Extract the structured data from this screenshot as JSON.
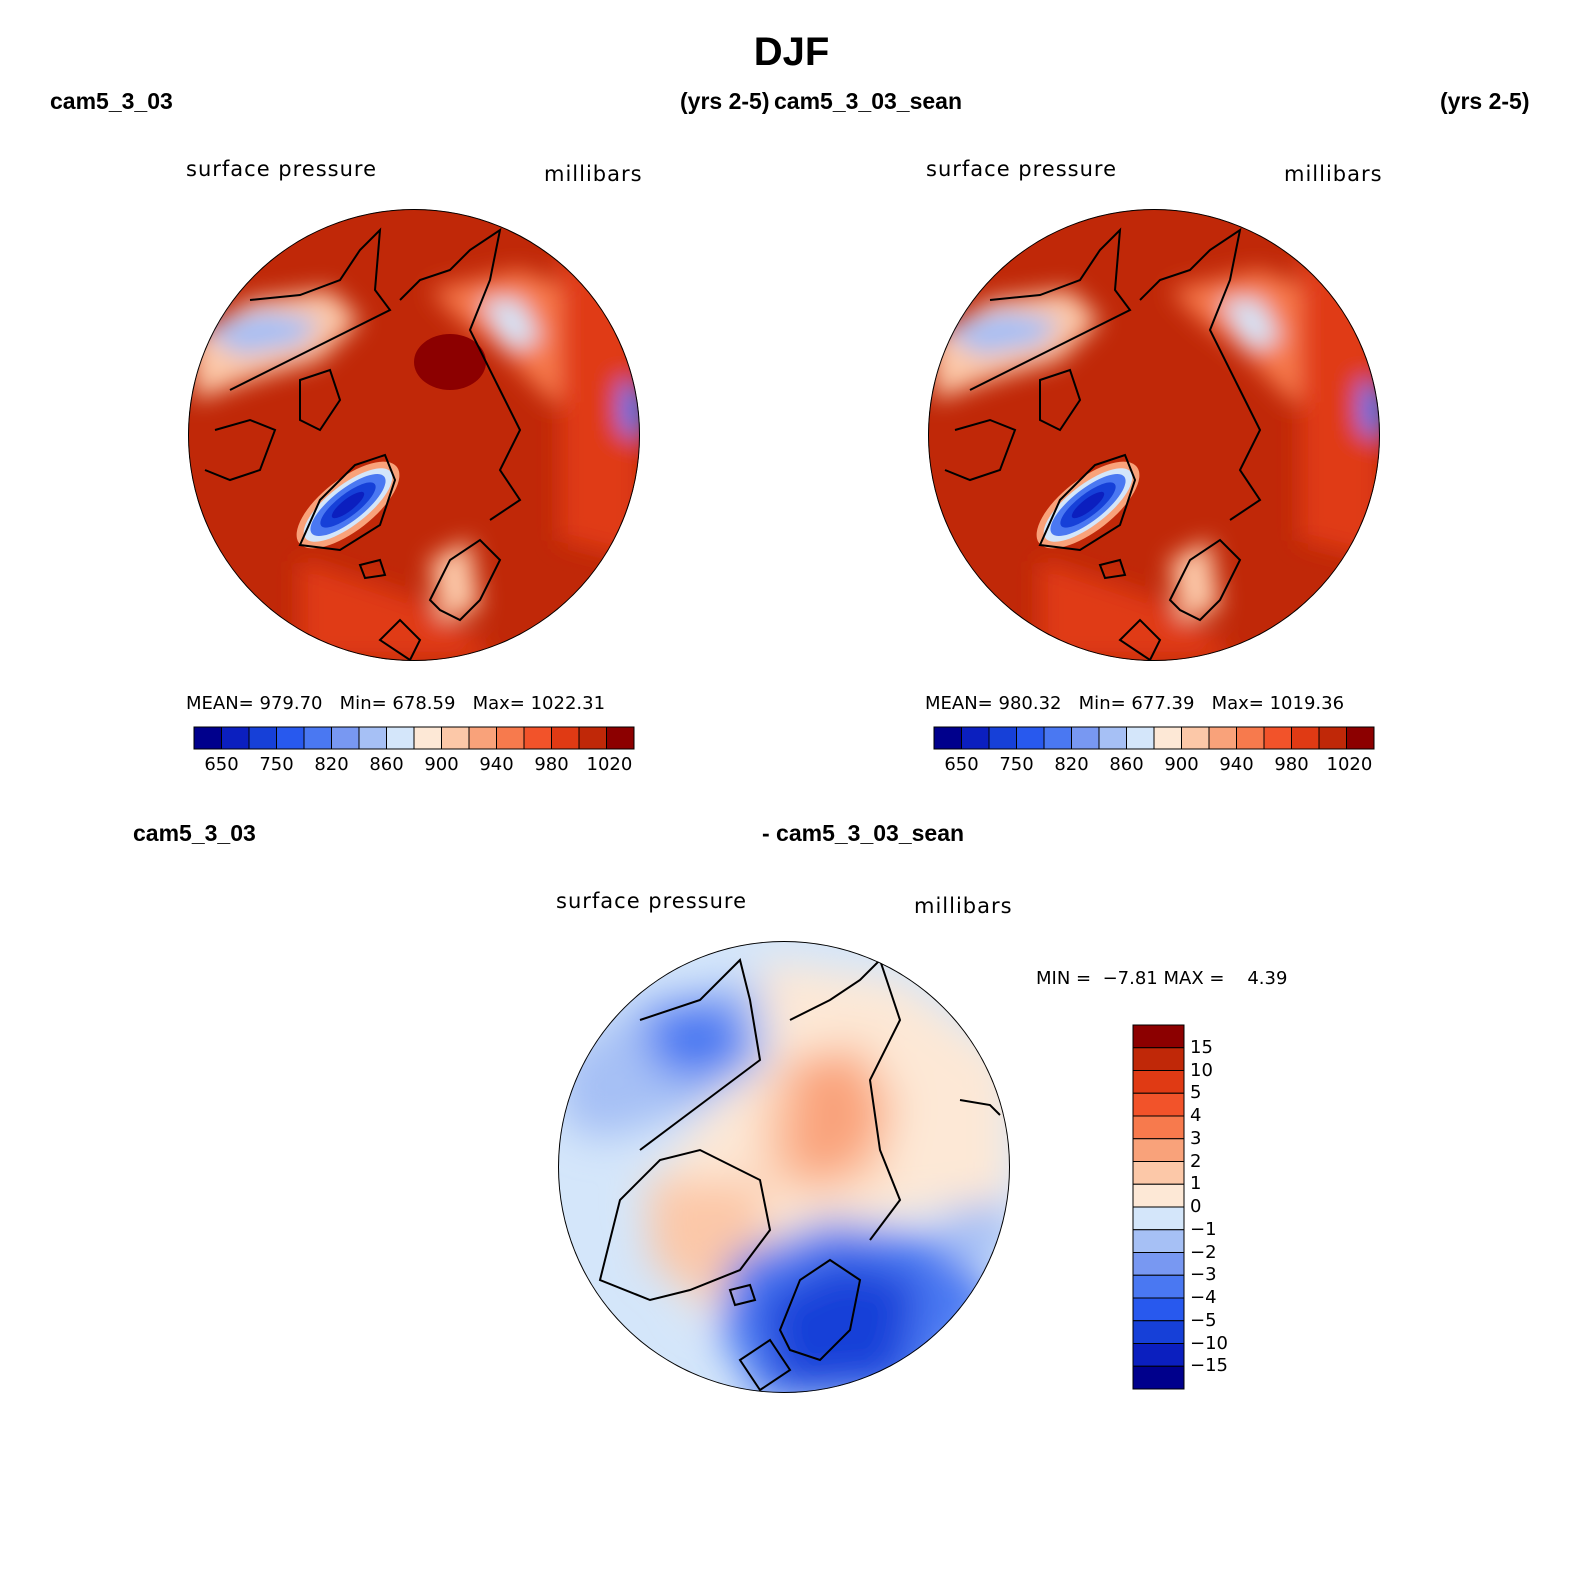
{
  "figure_title": "DJF",
  "panels": [
    {
      "case_label": "cam5_3_03",
      "years_label": "(yrs 2-5)",
      "variable": "surface pressure",
      "units": "millibars",
      "stats": {
        "mean_label": "MEAN=",
        "mean": "979.70",
        "min_label": "Min=",
        "min": "678.59",
        "max_label": "Max=",
        "max": "1022.31"
      }
    },
    {
      "case_label": "cam5_3_03_sean",
      "years_label": "(yrs 2-5)",
      "variable": "surface pressure",
      "units": "millibars",
      "stats": {
        "mean_label": "MEAN=",
        "mean": "980.32",
        "min_label": "Min=",
        "min": "677.39",
        "max_label": "Max=",
        "max": "1019.36"
      }
    }
  ],
  "horizontal_colorbar": {
    "colors": [
      "#00008c",
      "#0b1fbf",
      "#1640d8",
      "#2859ee",
      "#4a78f2",
      "#7898f2",
      "#a6c0f5",
      "#d4e6fa",
      "#fde8d6",
      "#fcc8a8",
      "#f9a27a",
      "#f77a4d",
      "#f2532a",
      "#e03a14",
      "#c02808",
      "#8c0000"
    ],
    "tick_labels": [
      "650",
      "750",
      "820",
      "860",
      "900",
      "940",
      "980",
      "1020"
    ]
  },
  "diff_panel": {
    "case_label_left": "cam5_3_03",
    "case_label_right": "- cam5_3_03_sean",
    "variable": "surface pressure",
    "units": "millibars",
    "range_text": {
      "min_label": "MIN =",
      "min": "−7.81",
      "max_label": "MAX =",
      "max": "4.39"
    },
    "colorbar": {
      "colors_top_to_bottom": [
        "#8c0000",
        "#c02808",
        "#e03a14",
        "#f2532a",
        "#f77a4d",
        "#f9a27a",
        "#fcc8a8",
        "#fde8d6",
        "#d4e6fa",
        "#a6c0f5",
        "#7898f2",
        "#4a78f2",
        "#2859ee",
        "#1640d8",
        "#0b1fbf",
        "#00008c"
      ],
      "tick_labels": [
        "15",
        "10",
        "5",
        "4",
        "3",
        "2",
        "1",
        "0",
        "−1",
        "−2",
        "−3",
        "−4",
        "−5",
        "−10",
        "−15"
      ]
    }
  }
}
